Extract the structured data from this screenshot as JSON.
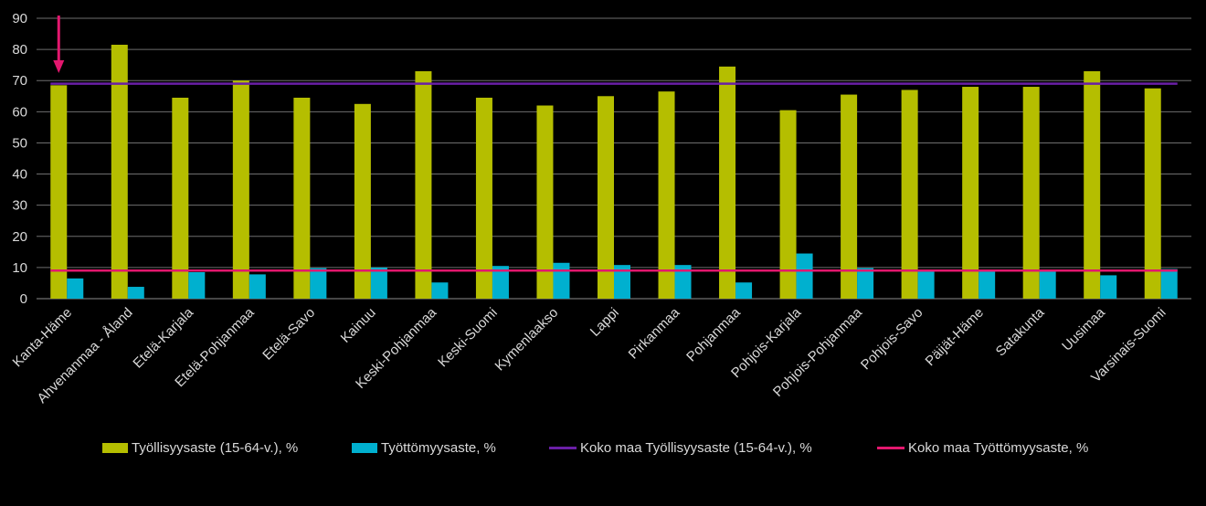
{
  "chart_data": {
    "type": "bar",
    "categories": [
      "Kanta-Häme",
      "Ahvenanmaa - Åland",
      "Etelä-Karjala",
      "Etelä-Pohjanmaa",
      "Etelä-Savo",
      "Kainuu",
      "Keski-Pohjanmaa",
      "Keski-Suomi",
      "Kymenlaakso",
      "Lappi",
      "Pirkanmaa",
      "Pohjanmaa",
      "Pohjois-Karjala",
      "Pohjois-Pohjanmaa",
      "Pohjois-Savo",
      "Päijät-Häme",
      "Satakunta",
      "Uusimaa",
      "Varsinais-Suomi"
    ],
    "series": [
      {
        "name": "Työllisyysaste (15-64-v.), %",
        "kind": "bar",
        "color": "#b5be00",
        "values": [
          68.5,
          81.5,
          64.5,
          70.0,
          64.5,
          62.5,
          73.0,
          64.5,
          62.0,
          65.0,
          66.5,
          74.5,
          60.5,
          65.5,
          67.0,
          68.0,
          68.0,
          73.0,
          67.5
        ]
      },
      {
        "name": "Työttömyysaste, %",
        "kind": "bar",
        "color": "#00b0cf",
        "values": [
          6.5,
          3.8,
          8.5,
          7.8,
          9.8,
          10.0,
          5.2,
          10.5,
          11.5,
          10.8,
          10.8,
          5.2,
          14.5,
          9.8,
          9.0,
          8.8,
          9.2,
          7.5,
          9.5
        ]
      },
      {
        "name": "Koko maa Työllisyysaste (15-64-v.), %",
        "kind": "line",
        "color": "#6a1fa6",
        "value": 69.0
      },
      {
        "name": "Koko maa Työttömyysaste, %",
        "kind": "line",
        "color": "#e3176e",
        "value": 9.0
      }
    ],
    "ylim": [
      0,
      90
    ],
    "yticks": [
      0,
      10,
      20,
      30,
      40,
      50,
      60,
      70,
      80,
      90
    ],
    "grid": true,
    "legend": "bottom",
    "annotation": {
      "type": "arrow",
      "color": "#e3176e",
      "target_category": "Kanta-Häme"
    }
  },
  "legend": [
    {
      "label": "Työllisyysaste (15-64-v.), %",
      "kind": "bar",
      "color": "#b5be00"
    },
    {
      "label": "Työttömyysaste, %",
      "kind": "bar",
      "color": "#00b0cf"
    },
    {
      "label": "Koko maa Työllisyysaste (15-64-v.), %",
      "kind": "line",
      "color": "#6a1fa6"
    },
    {
      "label": "Koko maa Työttömyysaste, %",
      "kind": "line",
      "color": "#e3176e"
    }
  ]
}
